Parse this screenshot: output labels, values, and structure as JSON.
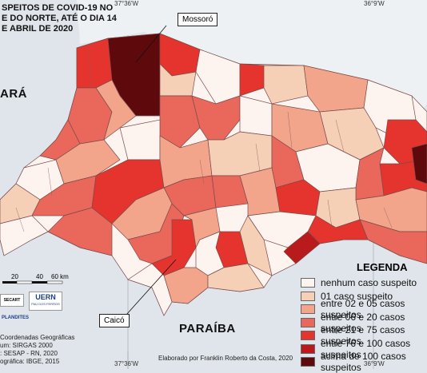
{
  "map": {
    "title_lines": [
      "SPEITOS DE COVID-19 NO",
      "E DO NORTE, ATÉ O DIA 14",
      "E ABRIL DE 2020"
    ],
    "state_labels": {
      "left": "ARÁ",
      "bottom": "PARAÍBA"
    },
    "coordinates": {
      "top_left": "37°36'W",
      "top_right": "36°9'W",
      "bottom_left": "37°36'W",
      "bottom_right": "36°9'W"
    },
    "callouts": {
      "mossoro": "Mossoró",
      "caico": "Caicó"
    },
    "scale": {
      "t20": "20",
      "t40": "40",
      "t60": "60 km"
    },
    "logos": {
      "secart": "SECART",
      "uern": "UERN",
      "uern_sub": "PAU DOS FERROS",
      "plandites": "PLANDITES"
    },
    "credits": [
      "Coordenadas Geográficas",
      "um: SIRGAS 2000",
      ": SESAP - RN, 2020",
      "ográfica: IBGE, 2015"
    ],
    "footer": "Elaborado por Franklin Roberto da Costa, 2020"
  },
  "legend": {
    "title": "LEGENDA",
    "items": [
      {
        "label": "nenhum caso suspeito",
        "color": "#fdf4ef"
      },
      {
        "label": "01 caso suspeito",
        "color": "#f6cfb7"
      },
      {
        "label": "entre 02 e 05 casos suspeitos",
        "color": "#f2a58a"
      },
      {
        "label": "entre 06 e 20 casos suspeitos",
        "color": "#e9685b"
      },
      {
        "label": "entre 21 e 75 casos suspeitos",
        "color": "#e5342d"
      },
      {
        "label": "entre 76 e 100 casos suspeitos",
        "color": "#b91a1c"
      },
      {
        "label": "acima de 100 casos suspeitos",
        "color": "#5e0a0d"
      }
    ]
  }
}
